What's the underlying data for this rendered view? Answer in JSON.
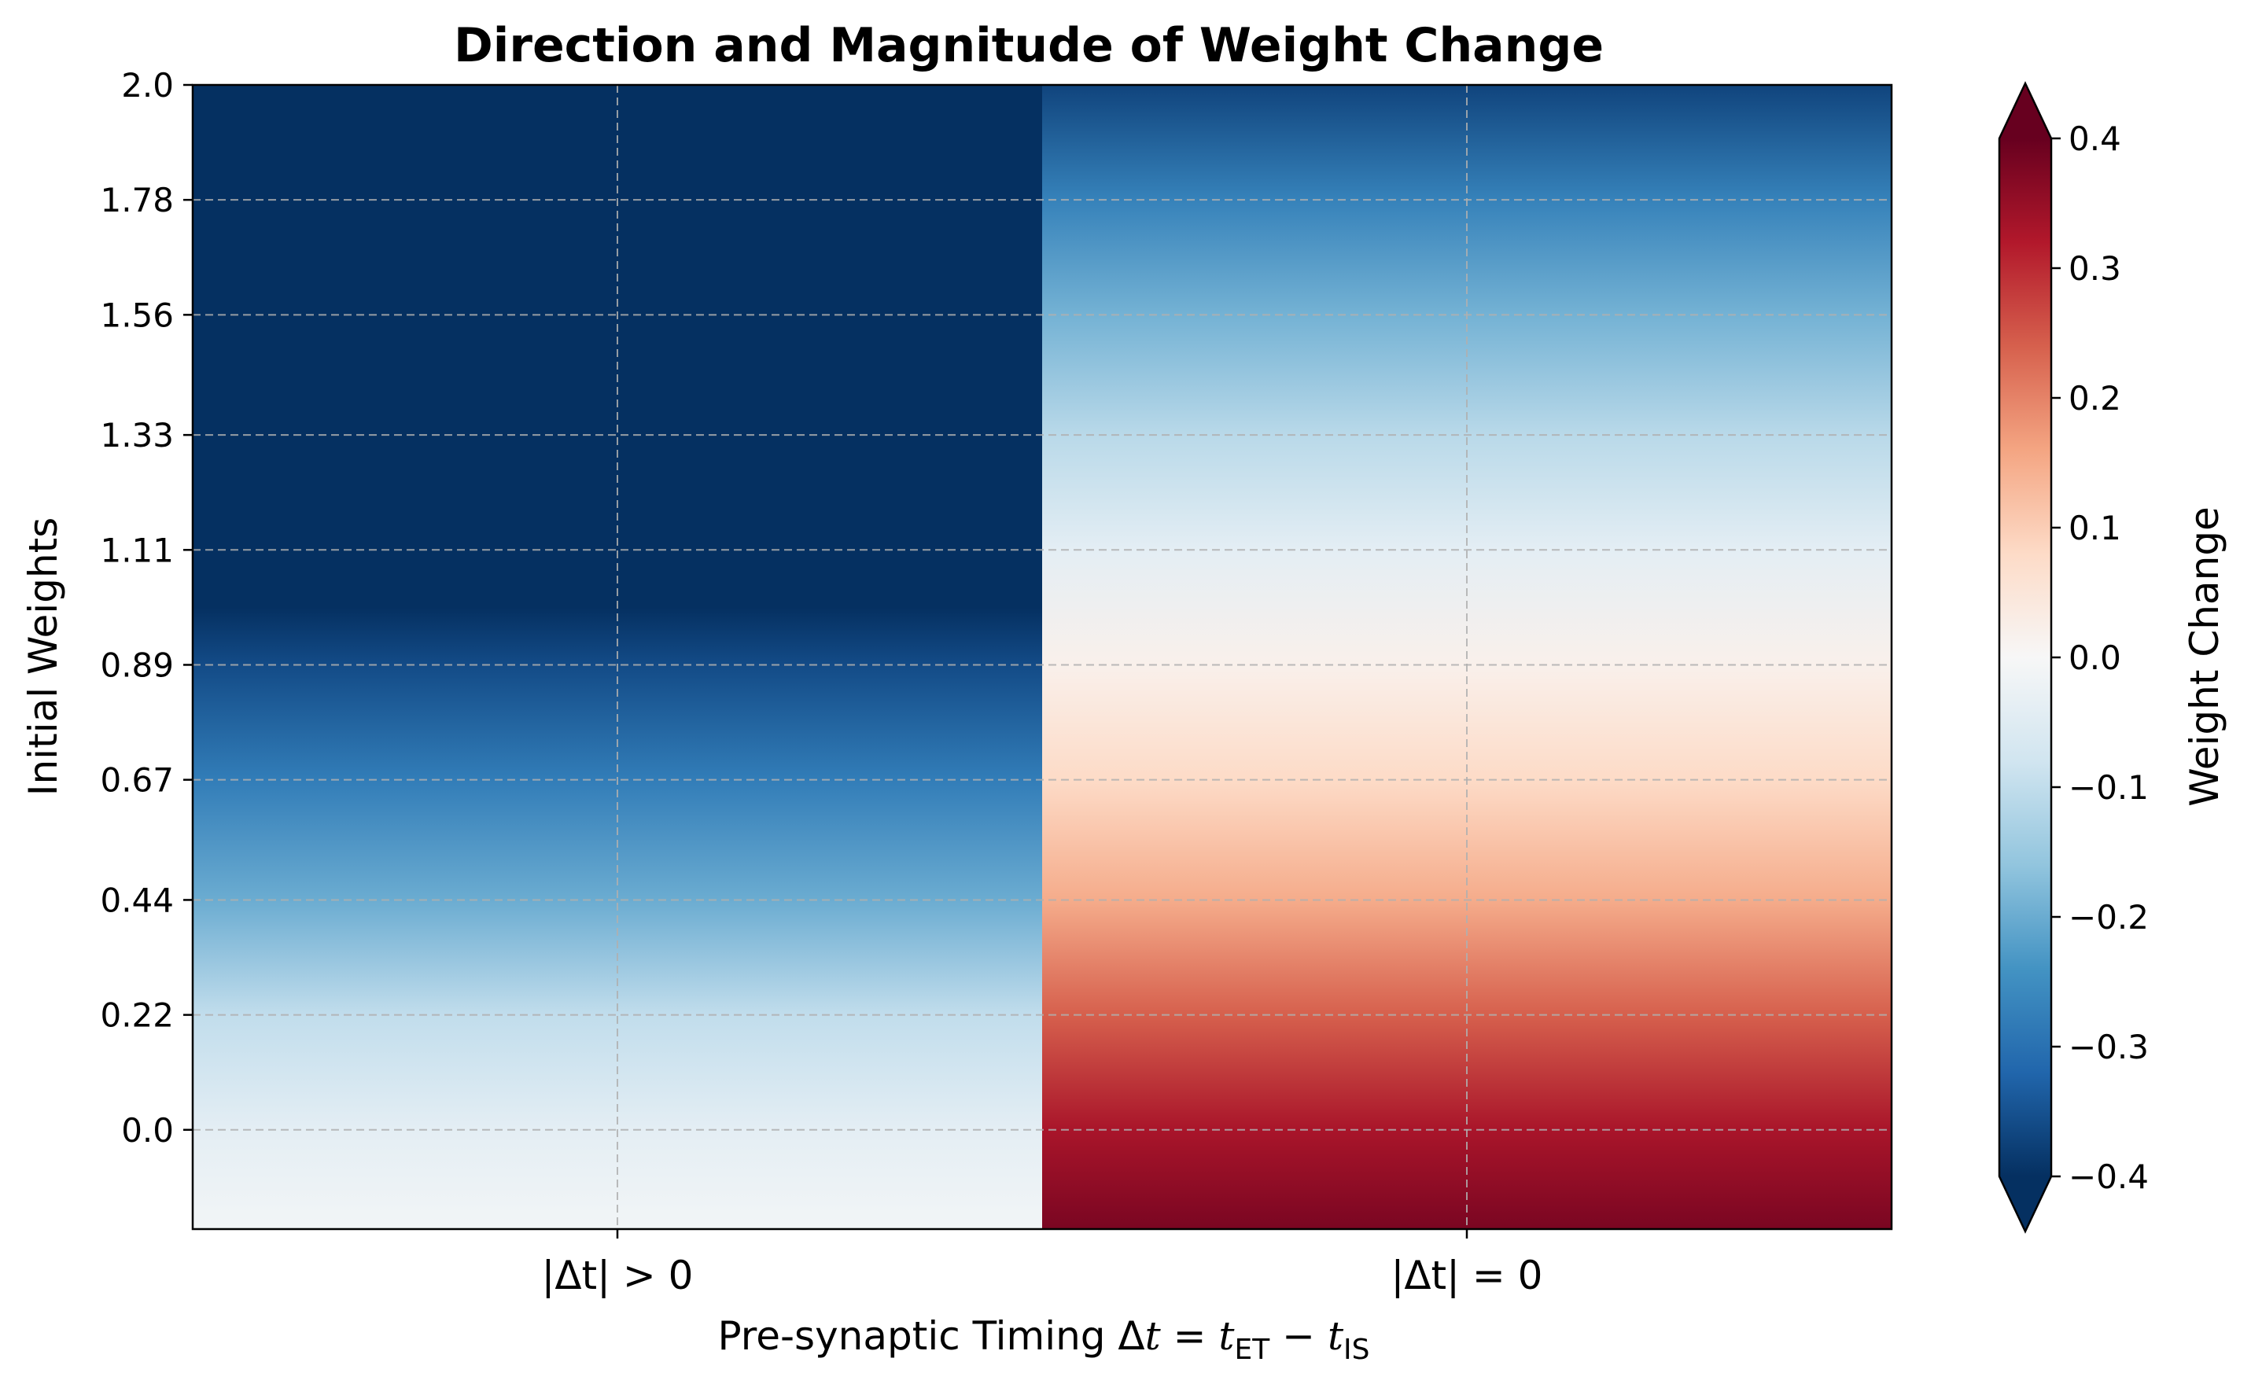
{
  "chart_data": {
    "type": "heatmap",
    "title": "Direction and Magnitude of Weight Change",
    "xlabel": "Pre-synaptic Timing Δt = t_ET − t_IS",
    "ylabel": "Initial Weights",
    "x_categories": [
      "|Δt| > 0",
      "|Δt| = 0"
    ],
    "ylim": [
      -0.19,
      2.0
    ],
    "y_ticks": [
      0.0,
      0.22,
      0.44,
      0.67,
      0.89,
      1.11,
      1.33,
      1.56,
      1.78,
      2.0
    ],
    "y_tick_labels": [
      "0.0",
      "0.22",
      "0.44",
      "0.67",
      "0.89",
      "1.11",
      "1.33",
      "1.56",
      "1.78",
      "2.0"
    ],
    "series": [
      {
        "category": "|Δt| > 0",
        "points": [
          {
            "y": -0.19,
            "value": -0.01
          },
          {
            "y": 0.0,
            "value": -0.04
          },
          {
            "y": 0.22,
            "value": -0.1
          },
          {
            "y": 0.44,
            "value": -0.2
          },
          {
            "y": 0.67,
            "value": -0.28
          },
          {
            "y": 0.89,
            "value": -0.36
          },
          {
            "y": 1.0,
            "value": -0.4
          },
          {
            "y": 1.11,
            "value": -0.42
          },
          {
            "y": 1.33,
            "value": -0.42
          },
          {
            "y": 1.56,
            "value": -0.42
          },
          {
            "y": 1.78,
            "value": -0.42
          },
          {
            "y": 2.0,
            "value": -0.42
          }
        ]
      },
      {
        "category": "|Δt| = 0",
        "points": [
          {
            "y": -0.19,
            "value": 0.38
          },
          {
            "y": 0.0,
            "value": 0.33
          },
          {
            "y": 0.22,
            "value": 0.24
          },
          {
            "y": 0.44,
            "value": 0.15
          },
          {
            "y": 0.67,
            "value": 0.08
          },
          {
            "y": 0.89,
            "value": 0.02
          },
          {
            "y": 1.11,
            "value": -0.04
          },
          {
            "y": 1.33,
            "value": -0.11
          },
          {
            "y": 1.56,
            "value": -0.19
          },
          {
            "y": 1.78,
            "value": -0.27
          },
          {
            "y": 2.0,
            "value": -0.37
          }
        ]
      }
    ],
    "colorbar": {
      "label": "Weight Change",
      "range": [
        -0.4,
        0.4
      ],
      "ticks": [
        "−0.4",
        "−0.3",
        "−0.2",
        "−0.1",
        "0.0",
        "0.1",
        "0.2",
        "0.3",
        "0.4"
      ],
      "extend": "both",
      "colormap": "RdBu_r"
    },
    "grid": true
  }
}
